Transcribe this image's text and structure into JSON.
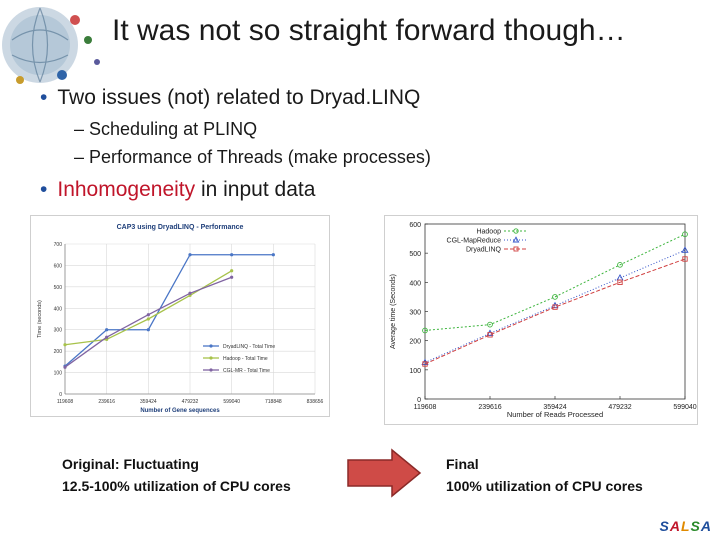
{
  "slide": {
    "title": "It was not so straight forward though…",
    "bullet1": "Two issues (not) related to Dryad.LINQ",
    "sub1": "Scheduling at PLINQ",
    "sub2": "Performance of Threads (make processes)",
    "bullet2_highlight": "Inhomogeneity",
    "bullet2_rest": " in input data",
    "dash": "–",
    "caption_left_line1": "Original: Fluctuating",
    "caption_left_line2": "12.5-100% utilization of CPU cores",
    "caption_right_line1": "Final",
    "caption_right_line2": "100% utilization of CPU cores",
    "logo": [
      "S",
      "A",
      "L",
      "S",
      "A"
    ],
    "logo_colors": [
      "#1f4e9c",
      "#c0152a",
      "#e08a00",
      "#2a8a2a",
      "#1f4e9c"
    ]
  },
  "chart_data": [
    {
      "type": "line",
      "title": "CAP3 using DryadLINQ - Performance",
      "xlabel": "Number of Gene sequences",
      "ylabel": "Time (seconds)",
      "categories": [
        "119608",
        "239616",
        "359424",
        "479232",
        "599040",
        "718848",
        "838656"
      ],
      "yticks": [
        "0",
        "100",
        "200",
        "300",
        "400",
        "500",
        "600",
        "700"
      ],
      "ylim": [
        0,
        700
      ],
      "grid": true,
      "legend": "bottom-right",
      "series": [
        {
          "name": "DryadLINQ - Total Time",
          "color": "#4a76c6",
          "values": [
            130,
            300,
            300,
            650,
            650,
            650,
            null
          ]
        },
        {
          "name": "Hadoop - Total Time",
          "color": "#a7c24a",
          "values": [
            230,
            255,
            350,
            460,
            575,
            null,
            null
          ]
        },
        {
          "name": "CGL-MR - Total Time",
          "color": "#8064a2",
          "values": [
            125,
            265,
            370,
            470,
            545,
            null,
            null
          ]
        }
      ]
    },
    {
      "type": "line",
      "xlabel": "Number of Reads Processed",
      "ylabel": "Average time (Seconds)",
      "categories": [
        "119608",
        "239616",
        "359424",
        "479232",
        "599040"
      ],
      "yticks": [
        "0",
        "100",
        "200",
        "300",
        "400",
        "500",
        "600"
      ],
      "ylim": [
        0,
        600
      ],
      "legend": "top-left",
      "series": [
        {
          "name": "Hadoop",
          "color": "#3cb43c",
          "marker": "circle",
          "values": [
            235,
            255,
            350,
            460,
            565
          ]
        },
        {
          "name": "CGL-MapReduce",
          "color": "#3050c8",
          "marker": "triangle",
          "values": [
            125,
            225,
            320,
            415,
            510
          ]
        },
        {
          "name": "DryadLINQ",
          "color": "#d04040",
          "marker": "square",
          "values": [
            120,
            220,
            315,
            400,
            480
          ]
        }
      ]
    }
  ]
}
